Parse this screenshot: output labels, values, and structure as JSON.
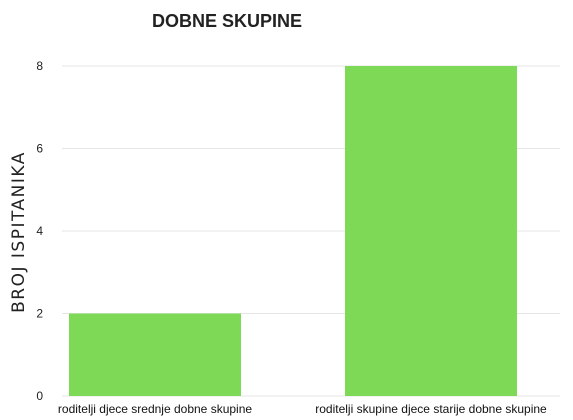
{
  "chart_data": {
    "type": "bar",
    "title": "DOBNE SKUPINE",
    "xlabel": "",
    "ylabel": "BROJ ISPITANIKA",
    "categories": [
      "roditelji djece srednje dobne skupine",
      "roditelji skupine djece starije dobne skupine"
    ],
    "values": [
      2,
      8
    ],
    "ylim": [
      0,
      8
    ],
    "yticks": [
      0,
      2,
      4,
      6,
      8
    ],
    "grid": true,
    "bar_color": "#7ed957",
    "grid_color": "#e6e6e6"
  }
}
